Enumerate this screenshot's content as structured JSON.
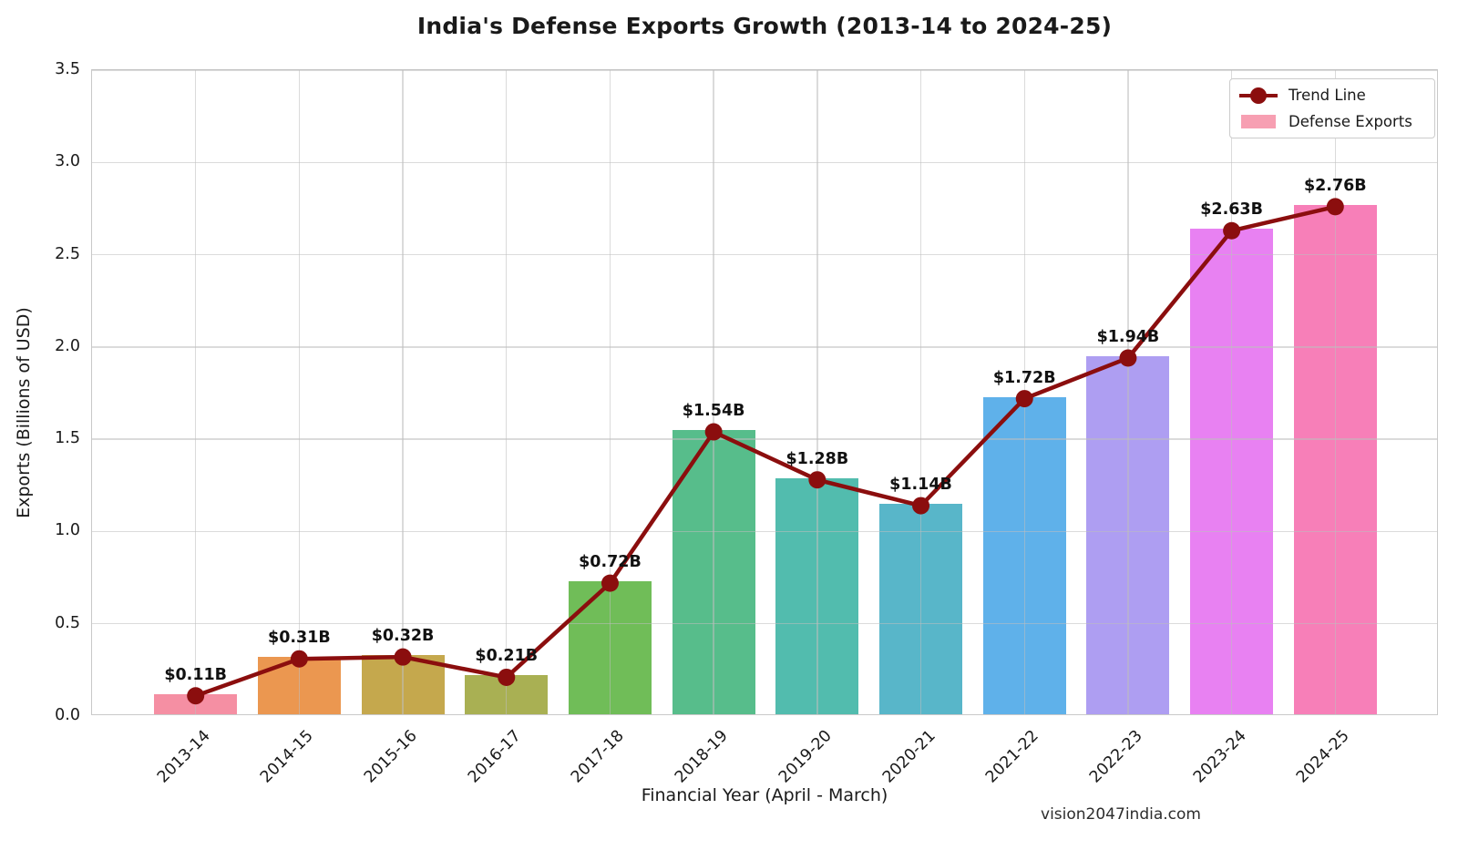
{
  "title": "India's Defense Exports Growth (2013-14 to 2024-25)",
  "watermark": "vision2047india.com",
  "legend": {
    "trend_label": "Trend Line",
    "bars_label": "Defense Exports",
    "patch_color": "#f79fb2"
  },
  "chart_data": {
    "type": "bar",
    "title": "India's Defense Exports Growth (2013-14 to 2024-25)",
    "xlabel": "Financial Year (April - March)",
    "ylabel": "Exports (Billions of USD)",
    "categories": [
      "2013-14",
      "2014-15",
      "2015-16",
      "2016-17",
      "2017-18",
      "2018-19",
      "2019-20",
      "2020-21",
      "2021-22",
      "2022-23",
      "2023-24",
      "2024-25"
    ],
    "values": [
      0.11,
      0.31,
      0.32,
      0.21,
      0.72,
      1.54,
      1.28,
      1.14,
      1.72,
      1.94,
      2.63,
      2.76
    ],
    "value_labels": [
      "$0.11B",
      "$0.31B",
      "$0.32B",
      "$0.21B",
      "$0.72B",
      "$1.54B",
      "$1.28B",
      "$1.14B",
      "$1.72B",
      "$1.94B",
      "$2.63B",
      "$2.76B"
    ],
    "bar_colors": [
      "#f58fa3",
      "#eb9750",
      "#c5a84d",
      "#a9b053",
      "#70bd58",
      "#57bd8b",
      "#52bcae",
      "#58b6c9",
      "#5fb1ea",
      "#ae9ef2",
      "#e881f2",
      "#f77fb8"
    ],
    "series": [
      {
        "name": "Trend Line",
        "type": "line",
        "color": "#8b0e0e"
      },
      {
        "name": "Defense Exports",
        "type": "bar"
      }
    ],
    "ylim": [
      0,
      3.5
    ],
    "yticks": [
      0.0,
      0.5,
      1.0,
      1.5,
      2.0,
      2.5,
      3.0,
      3.5
    ],
    "grid": true,
    "legend_position": "upper right"
  }
}
